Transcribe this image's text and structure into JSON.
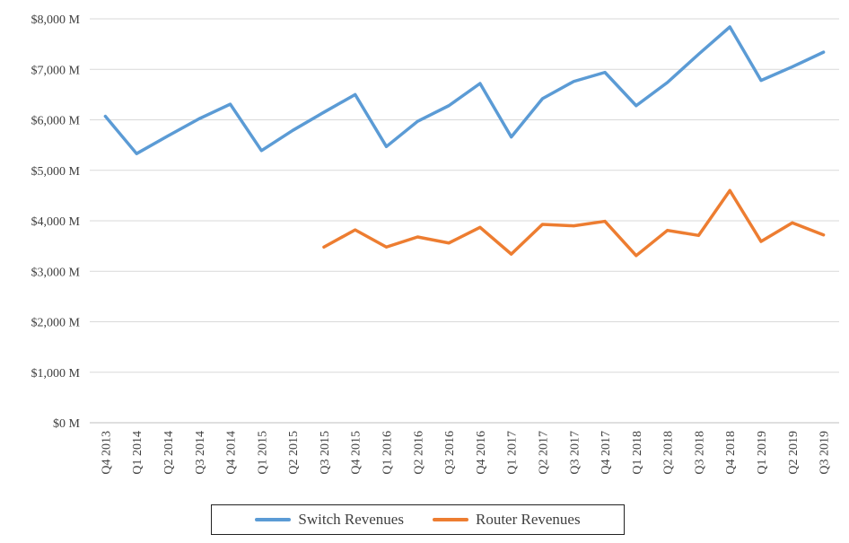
{
  "chart_data": {
    "type": "line",
    "categories": [
      "Q4 2013",
      "Q1 2014",
      "Q2 2014",
      "Q3 2014",
      "Q4 2014",
      "Q1 2015",
      "Q2 2015",
      "Q3 2015",
      "Q4 2015",
      "Q1 2016",
      "Q2 2016",
      "Q3 2016",
      "Q4 2016",
      "Q1 2017",
      "Q2 2017",
      "Q3 2017",
      "Q4 2017",
      "Q1 2018",
      "Q2 2018",
      "Q3 2018",
      "Q4 2018",
      "Q1 2019",
      "Q2 2019",
      "Q3 2019"
    ],
    "series": [
      {
        "name": "Switch Revenues",
        "color": "#5B9BD5",
        "values": [
          6070,
          5330,
          5680,
          6020,
          6310,
          5390,
          5790,
          6150,
          6500,
          5470,
          5970,
          6280,
          6720,
          5660,
          6420,
          6760,
          6940,
          6280,
          6740,
          7300,
          7840,
          6780,
          7050,
          7340
        ]
      },
      {
        "name": "Router Revenues",
        "color": "#ED7D31",
        "values": [
          null,
          null,
          null,
          null,
          null,
          null,
          null,
          3480,
          3820,
          3480,
          3680,
          3560,
          3870,
          3340,
          3930,
          3900,
          3990,
          3310,
          3810,
          3710,
          4600,
          3590,
          3960,
          3720
        ]
      }
    ],
    "ylim": [
      0,
      8000
    ],
    "yticks": [
      0,
      1000,
      2000,
      3000,
      4000,
      5000,
      6000,
      7000,
      8000
    ],
    "ytick_labels": [
      "$0 M",
      "$1,000 M",
      "$2,000 M",
      "$3,000 M",
      "$4,000 M",
      "$5,000 M",
      "$6,000 M",
      "$7,000 M",
      "$8,000 M"
    ],
    "grid": true,
    "legend_position": "bottom",
    "title": "",
    "xlabel": "",
    "ylabel": ""
  },
  "legend": {
    "switch_label": "Switch Revenues",
    "router_label": "Router Revenues"
  }
}
